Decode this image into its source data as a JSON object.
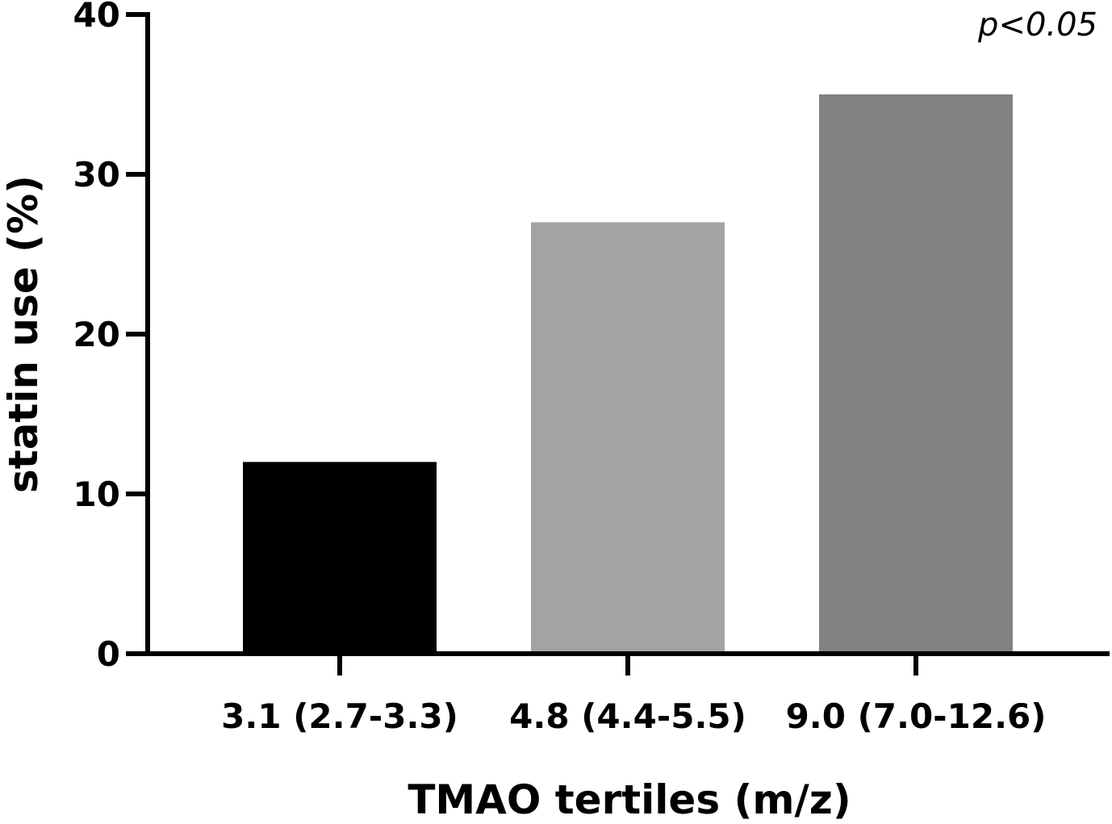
{
  "chart_data": {
    "type": "bar",
    "categories": [
      "3.1 (2.7-3.3)",
      "4.8 (4.4-5.5)",
      "9.0 (7.0-12.6)"
    ],
    "values": [
      12,
      27,
      35
    ],
    "colors": [
      "#000000",
      "#a3a3a3",
      "#828282"
    ],
    "xlabel": "TMAO tertiles (m/z)",
    "ylabel": "statin use (%)",
    "ylim": [
      0,
      40
    ],
    "yticks": [
      "0",
      "10",
      "20",
      "30",
      "40"
    ],
    "annotation": "p<0.05",
    "grid": false,
    "legend": "none"
  }
}
